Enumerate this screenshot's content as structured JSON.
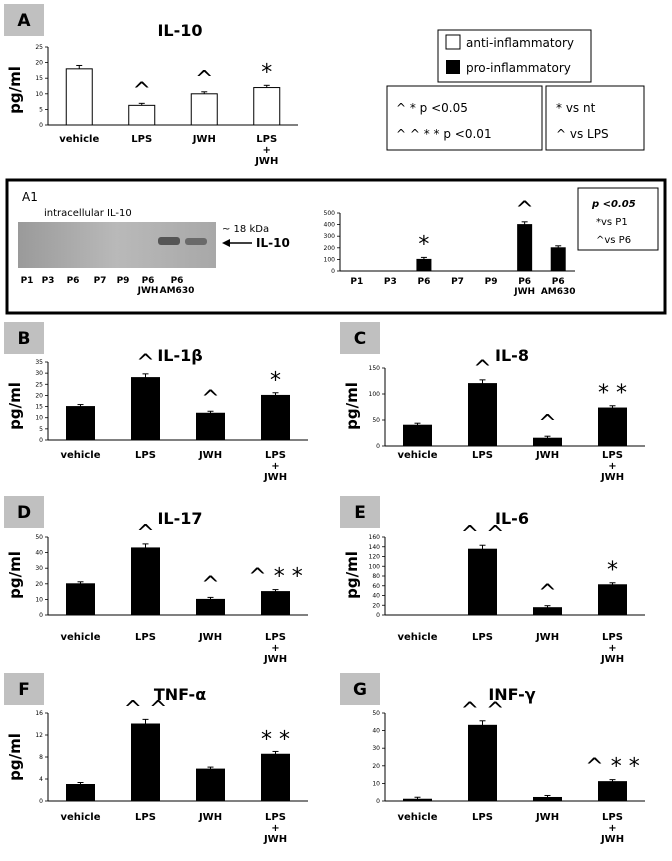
{
  "legend": {
    "anti": "anti-inflammatory",
    "pro": "pro-inflammatory",
    "sig1": "^ * p <0.05",
    "sig2": "^ ^ * * p <0.01",
    "vs1": "* vs nt",
    "vs2": "^ vs LPS"
  },
  "panel_a1": {
    "letter": "A1",
    "blot_title": "intracellular IL-10",
    "kda": "~ 18 kDa",
    "arrow_label": "IL-10",
    "lanes": [
      "P1",
      "P3",
      "P6",
      "P7",
      "P9",
      "P6\nJWH",
      "P6\nAM630"
    ],
    "box_line1": "p <0.05",
    "box_line2": "*vs P1",
    "box_line3": "^vs P6"
  },
  "chart_data": [
    {
      "id": "A",
      "type": "bar",
      "title": "IL-10",
      "ylabel": "pg/ml",
      "fill": "#ffffff",
      "categories": [
        "vehicle",
        "LPS",
        "JWH",
        "LPS\n+\nJWH"
      ],
      "values": [
        18,
        6.3,
        10,
        12
      ],
      "ylim": [
        0,
        25
      ],
      "yticks": [
        0,
        5,
        10,
        15,
        20,
        25
      ],
      "sig": [
        "",
        "^",
        "^",
        "*"
      ]
    },
    {
      "id": "A1",
      "type": "bar",
      "title": "",
      "fill": "#000000",
      "categories": [
        "P1",
        "P3",
        "P6",
        "P7",
        "P9",
        "P6\nJWH",
        "P6\nAM630"
      ],
      "values": [
        0,
        0,
        100,
        0,
        0,
        400,
        200
      ],
      "ylim": [
        0,
        500
      ],
      "yticks": [
        0,
        100,
        200,
        300,
        400,
        500
      ],
      "sig": [
        "",
        "",
        "*",
        "",
        "",
        "^",
        ""
      ]
    },
    {
      "id": "B",
      "type": "bar",
      "title": "IL-1β",
      "ylabel": "pg/ml",
      "fill": "#000000",
      "categories": [
        "vehicle",
        "LPS",
        "JWH",
        "LPS\n+\nJWH"
      ],
      "values": [
        15,
        28,
        12,
        20
      ],
      "ylim": [
        0,
        35
      ],
      "yticks": [
        0,
        5,
        10,
        15,
        20,
        25,
        30,
        35
      ],
      "sig": [
        "",
        "^",
        "^",
        "*"
      ]
    },
    {
      "id": "C",
      "type": "bar",
      "title": "IL-8",
      "ylabel": "pg/ml",
      "fill": "#000000",
      "categories": [
        "vehicle",
        "LPS",
        "JWH",
        "LPS\n+\nJWH"
      ],
      "values": [
        40,
        120,
        15,
        73
      ],
      "ylim": [
        0,
        150
      ],
      "yticks": [
        0,
        50,
        100,
        150
      ],
      "sig": [
        "",
        "^",
        "^",
        "**"
      ]
    },
    {
      "id": "D",
      "type": "bar",
      "title": "IL-17",
      "ylabel": "pg/ml",
      "fill": "#000000",
      "categories": [
        "vehicle",
        "LPS",
        "JWH",
        "LPS\n+\nJWH"
      ],
      "values": [
        20,
        43,
        10,
        15
      ],
      "ylim": [
        0,
        50
      ],
      "yticks": [
        0,
        10,
        20,
        30,
        40,
        50
      ],
      "sig": [
        "",
        "^",
        "^",
        "^**"
      ]
    },
    {
      "id": "E",
      "type": "bar",
      "title": "IL-6",
      "ylabel": "pg/ml",
      "fill": "#000000",
      "categories": [
        "vehicle",
        "LPS",
        "JWH",
        "LPS\n+\nJWH"
      ],
      "values": [
        0,
        135,
        15,
        62
      ],
      "ylim": [
        0,
        160
      ],
      "yticks": [
        0,
        20,
        40,
        60,
        80,
        100,
        120,
        140,
        160
      ],
      "sig": [
        "",
        "^^",
        "^",
        "*"
      ]
    },
    {
      "id": "F",
      "type": "bar",
      "title": "TNF-α",
      "ylabel": "pg/ml",
      "fill": "#000000",
      "categories": [
        "vehicle",
        "LPS",
        "JWH",
        "LPS\n+\nJWH"
      ],
      "values": [
        3,
        14,
        5.8,
        8.5
      ],
      "ylim": [
        0,
        16
      ],
      "yticks": [
        0,
        4,
        8,
        12,
        16
      ],
      "sig": [
        "",
        "^^",
        "",
        "**"
      ]
    },
    {
      "id": "G",
      "type": "bar",
      "title": "INF-γ",
      "fill": "#000000",
      "categories": [
        "vehicle",
        "LPS",
        "JWH",
        "LPS\n+\nJWH"
      ],
      "values": [
        1,
        43,
        2,
        11
      ],
      "ylim": [
        0,
        50
      ],
      "yticks": [
        0,
        10,
        20,
        30,
        40,
        50
      ],
      "sig": [
        "",
        "^^",
        "",
        "^**"
      ]
    }
  ]
}
